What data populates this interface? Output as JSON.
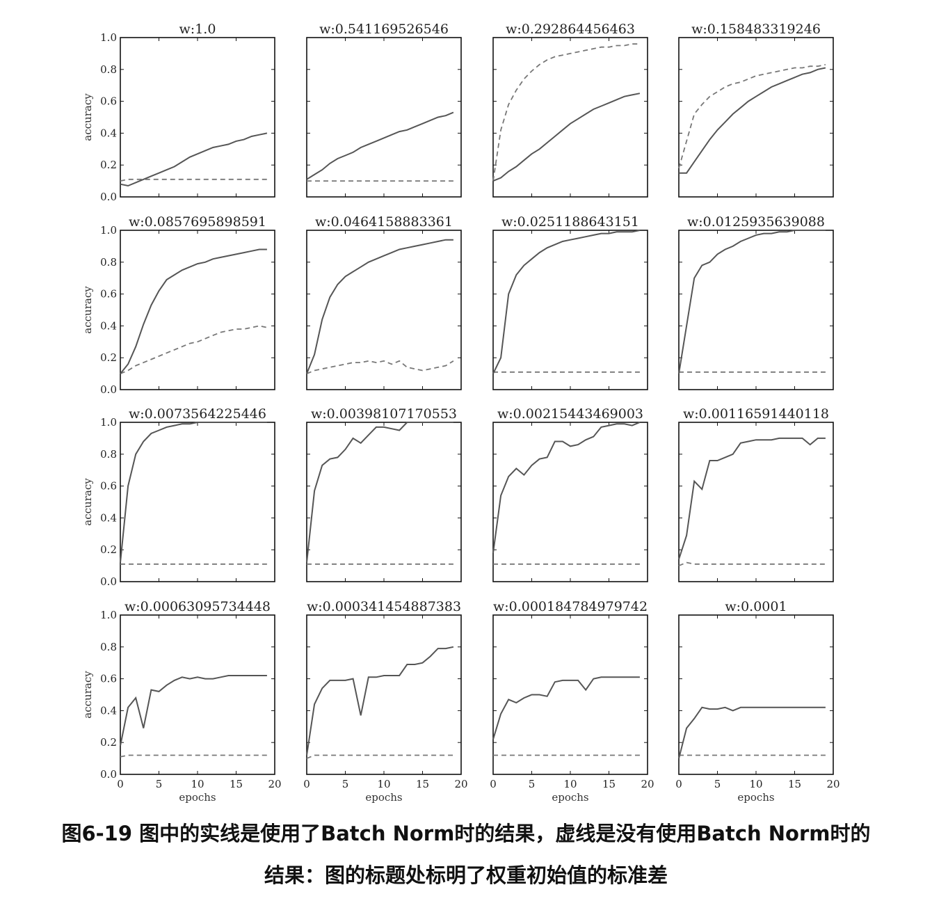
{
  "caption": {
    "line1": "图6-19 图中的实线是使用了Batch Norm时的结果，虚线是没有使用Batch Norm时的",
    "line2": "结果：图的标题处标明了权重初始值的标准差"
  },
  "chart_data": {
    "type": "line",
    "layout": "4x4 grid of small multiples",
    "xlabel": "epochs",
    "ylabel": "accuracy",
    "xlim": [
      0,
      20
    ],
    "ylim": [
      0.0,
      1.0
    ],
    "xticks": [
      "0",
      "5",
      "10",
      "15",
      "20"
    ],
    "yticks": [
      "0.0",
      "0.2",
      "0.4",
      "0.6",
      "0.8",
      "1.0"
    ],
    "grid": false,
    "legend": "none",
    "line_color": "#555555",
    "styles": {
      "batch_norm": "solid",
      "no_batch_norm": "dashed"
    },
    "x": [
      0,
      1,
      2,
      3,
      4,
      5,
      6,
      7,
      8,
      9,
      10,
      11,
      12,
      13,
      14,
      15,
      16,
      17,
      18,
      19
    ],
    "panels": [
      {
        "title": "w:1.0",
        "solid": [
          0.08,
          0.07,
          0.09,
          0.11,
          0.13,
          0.15,
          0.17,
          0.19,
          0.22,
          0.25,
          0.27,
          0.29,
          0.31,
          0.32,
          0.33,
          0.35,
          0.36,
          0.38,
          0.39,
          0.4
        ],
        "dashed": [
          0.1,
          0.11,
          0.11,
          0.11,
          0.11,
          0.11,
          0.11,
          0.11,
          0.11,
          0.11,
          0.11,
          0.11,
          0.11,
          0.11,
          0.11,
          0.11,
          0.11,
          0.11,
          0.11,
          0.11
        ]
      },
      {
        "title": "w:0.541169526546",
        "solid": [
          0.11,
          0.14,
          0.17,
          0.21,
          0.24,
          0.26,
          0.28,
          0.31,
          0.33,
          0.35,
          0.37,
          0.39,
          0.41,
          0.42,
          0.44,
          0.46,
          0.48,
          0.5,
          0.51,
          0.53
        ],
        "dashed": [
          0.1,
          0.1,
          0.1,
          0.1,
          0.1,
          0.1,
          0.1,
          0.1,
          0.1,
          0.1,
          0.1,
          0.1,
          0.1,
          0.1,
          0.1,
          0.1,
          0.1,
          0.1,
          0.1,
          0.1
        ]
      },
      {
        "title": "w:0.292864456463",
        "solid": [
          0.1,
          0.12,
          0.16,
          0.19,
          0.23,
          0.27,
          0.3,
          0.34,
          0.38,
          0.42,
          0.46,
          0.49,
          0.52,
          0.55,
          0.57,
          0.59,
          0.61,
          0.63,
          0.64,
          0.65
        ],
        "dashed": [
          0.1,
          0.42,
          0.58,
          0.67,
          0.74,
          0.79,
          0.83,
          0.86,
          0.88,
          0.89,
          0.9,
          0.91,
          0.92,
          0.93,
          0.94,
          0.94,
          0.95,
          0.95,
          0.96,
          0.96
        ]
      },
      {
        "title": "w:0.158483319246",
        "solid": [
          0.15,
          0.15,
          0.22,
          0.29,
          0.36,
          0.42,
          0.47,
          0.52,
          0.56,
          0.6,
          0.63,
          0.66,
          0.69,
          0.71,
          0.73,
          0.75,
          0.77,
          0.78,
          0.8,
          0.81
        ],
        "dashed": [
          0.18,
          0.35,
          0.52,
          0.58,
          0.63,
          0.66,
          0.69,
          0.71,
          0.72,
          0.74,
          0.76,
          0.77,
          0.78,
          0.79,
          0.8,
          0.81,
          0.81,
          0.82,
          0.82,
          0.83
        ]
      },
      {
        "title": "w:0.0857695898591",
        "solid": [
          0.1,
          0.16,
          0.27,
          0.41,
          0.53,
          0.62,
          0.69,
          0.72,
          0.75,
          0.77,
          0.79,
          0.8,
          0.82,
          0.83,
          0.84,
          0.85,
          0.86,
          0.87,
          0.88,
          0.88
        ],
        "dashed": [
          0.1,
          0.12,
          0.15,
          0.17,
          0.19,
          0.21,
          0.23,
          0.25,
          0.27,
          0.29,
          0.3,
          0.32,
          0.34,
          0.36,
          0.37,
          0.38,
          0.38,
          0.39,
          0.4,
          0.39
        ]
      },
      {
        "title": "w:0.0464158883361",
        "solid": [
          0.1,
          0.22,
          0.44,
          0.58,
          0.66,
          0.71,
          0.74,
          0.77,
          0.8,
          0.82,
          0.84,
          0.86,
          0.88,
          0.89,
          0.9,
          0.91,
          0.92,
          0.93,
          0.94,
          0.94
        ],
        "dashed": [
          0.1,
          0.12,
          0.13,
          0.14,
          0.15,
          0.16,
          0.17,
          0.17,
          0.18,
          0.17,
          0.18,
          0.16,
          0.18,
          0.14,
          0.13,
          0.12,
          0.13,
          0.14,
          0.15,
          0.18
        ]
      },
      {
        "title": "w:0.0251188643151",
        "solid": [
          0.1,
          0.2,
          0.6,
          0.72,
          0.78,
          0.82,
          0.86,
          0.89,
          0.91,
          0.93,
          0.94,
          0.95,
          0.96,
          0.97,
          0.98,
          0.98,
          0.99,
          0.99,
          0.99,
          1.0
        ],
        "dashed": [
          0.11,
          0.11,
          0.11,
          0.11,
          0.11,
          0.11,
          0.11,
          0.11,
          0.11,
          0.11,
          0.11,
          0.11,
          0.11,
          0.11,
          0.11,
          0.11,
          0.11,
          0.11,
          0.11,
          0.11
        ]
      },
      {
        "title": "w:0.0125935639088",
        "solid": [
          0.1,
          0.4,
          0.7,
          0.78,
          0.8,
          0.85,
          0.88,
          0.9,
          0.93,
          0.95,
          0.97,
          0.98,
          0.98,
          0.99,
          0.99,
          1.0,
          1.0,
          1.0,
          1.0,
          1.0
        ],
        "dashed": [
          0.11,
          0.11,
          0.11,
          0.11,
          0.11,
          0.11,
          0.11,
          0.11,
          0.11,
          0.11,
          0.11,
          0.11,
          0.11,
          0.11,
          0.11,
          0.11,
          0.11,
          0.11,
          0.11,
          0.11
        ]
      },
      {
        "title": "w:0.0073564225446",
        "solid": [
          0.12,
          0.6,
          0.8,
          0.88,
          0.93,
          0.95,
          0.97,
          0.98,
          0.99,
          0.99,
          1.0,
          1.0,
          1.0,
          1.0,
          1.0,
          1.0,
          1.0,
          1.0,
          1.0,
          1.0
        ],
        "dashed": [
          0.11,
          0.11,
          0.11,
          0.11,
          0.11,
          0.11,
          0.11,
          0.11,
          0.11,
          0.11,
          0.11,
          0.11,
          0.11,
          0.11,
          0.11,
          0.11,
          0.11,
          0.11,
          0.11,
          0.11
        ]
      },
      {
        "title": "w:0.00398107170553",
        "solid": [
          0.12,
          0.57,
          0.73,
          0.77,
          0.78,
          0.83,
          0.9,
          0.87,
          0.92,
          0.97,
          0.97,
          0.96,
          0.95,
          1.0,
          1.0,
          1.0,
          1.0,
          1.0,
          1.0,
          1.0
        ],
        "dashed": [
          0.11,
          0.11,
          0.11,
          0.11,
          0.11,
          0.11,
          0.11,
          0.11,
          0.11,
          0.11,
          0.11,
          0.11,
          0.11,
          0.11,
          0.11,
          0.11,
          0.11,
          0.11,
          0.11,
          0.11
        ]
      },
      {
        "title": "w:0.00215443469003",
        "solid": [
          0.18,
          0.54,
          0.66,
          0.71,
          0.67,
          0.73,
          0.77,
          0.78,
          0.88,
          0.88,
          0.85,
          0.86,
          0.89,
          0.91,
          0.97,
          0.98,
          0.99,
          0.99,
          0.98,
          1.0
        ],
        "dashed": [
          0.11,
          0.11,
          0.11,
          0.11,
          0.11,
          0.11,
          0.11,
          0.11,
          0.11,
          0.11,
          0.11,
          0.11,
          0.11,
          0.11,
          0.11,
          0.11,
          0.11,
          0.11,
          0.11,
          0.11
        ]
      },
      {
        "title": "w:0.00116591440118",
        "solid": [
          0.14,
          0.29,
          0.63,
          0.58,
          0.76,
          0.76,
          0.78,
          0.8,
          0.87,
          0.88,
          0.89,
          0.89,
          0.89,
          0.9,
          0.9,
          0.9,
          0.9,
          0.86,
          0.9,
          0.9
        ],
        "dashed": [
          0.1,
          0.12,
          0.11,
          0.11,
          0.11,
          0.11,
          0.11,
          0.11,
          0.11,
          0.11,
          0.11,
          0.11,
          0.11,
          0.11,
          0.11,
          0.11,
          0.11,
          0.11,
          0.11,
          0.11
        ]
      },
      {
        "title": "w:0.00063095734448",
        "solid": [
          0.18,
          0.42,
          0.48,
          0.29,
          0.53,
          0.52,
          0.56,
          0.59,
          0.61,
          0.6,
          0.61,
          0.6,
          0.6,
          0.61,
          0.62,
          0.62,
          0.62,
          0.62,
          0.62,
          0.62
        ],
        "dashed": [
          0.11,
          0.12,
          0.12,
          0.12,
          0.12,
          0.12,
          0.12,
          0.12,
          0.12,
          0.12,
          0.12,
          0.12,
          0.12,
          0.12,
          0.12,
          0.12,
          0.12,
          0.12,
          0.12,
          0.12
        ]
      },
      {
        "title": "w:0.000341454887383",
        "solid": [
          0.12,
          0.44,
          0.54,
          0.59,
          0.59,
          0.59,
          0.6,
          0.37,
          0.61,
          0.61,
          0.62,
          0.62,
          0.62,
          0.69,
          0.69,
          0.7,
          0.74,
          0.79,
          0.79,
          0.8
        ],
        "dashed": [
          0.1,
          0.12,
          0.12,
          0.12,
          0.12,
          0.12,
          0.12,
          0.12,
          0.12,
          0.12,
          0.12,
          0.12,
          0.12,
          0.12,
          0.12,
          0.12,
          0.12,
          0.12,
          0.12,
          0.12
        ]
      },
      {
        "title": "w:0.000184784979742",
        "solid": [
          0.22,
          0.38,
          0.47,
          0.45,
          0.48,
          0.5,
          0.5,
          0.49,
          0.58,
          0.59,
          0.59,
          0.59,
          0.53,
          0.6,
          0.61,
          0.61,
          0.61,
          0.61,
          0.61,
          0.61
        ],
        "dashed": [
          0.12,
          0.12,
          0.12,
          0.12,
          0.12,
          0.12,
          0.12,
          0.12,
          0.12,
          0.12,
          0.12,
          0.12,
          0.12,
          0.12,
          0.12,
          0.12,
          0.12,
          0.12,
          0.12,
          0.12
        ]
      },
      {
        "title": "w:0.0001",
        "solid": [
          0.1,
          0.29,
          0.35,
          0.42,
          0.41,
          0.41,
          0.42,
          0.4,
          0.42,
          0.42,
          0.42,
          0.42,
          0.42,
          0.42,
          0.42,
          0.42,
          0.42,
          0.42,
          0.42,
          0.42
        ],
        "dashed": [
          0.12,
          0.12,
          0.12,
          0.12,
          0.12,
          0.12,
          0.12,
          0.12,
          0.12,
          0.12,
          0.12,
          0.12,
          0.12,
          0.12,
          0.12,
          0.12,
          0.12,
          0.12,
          0.12,
          0.12
        ]
      }
    ]
  }
}
